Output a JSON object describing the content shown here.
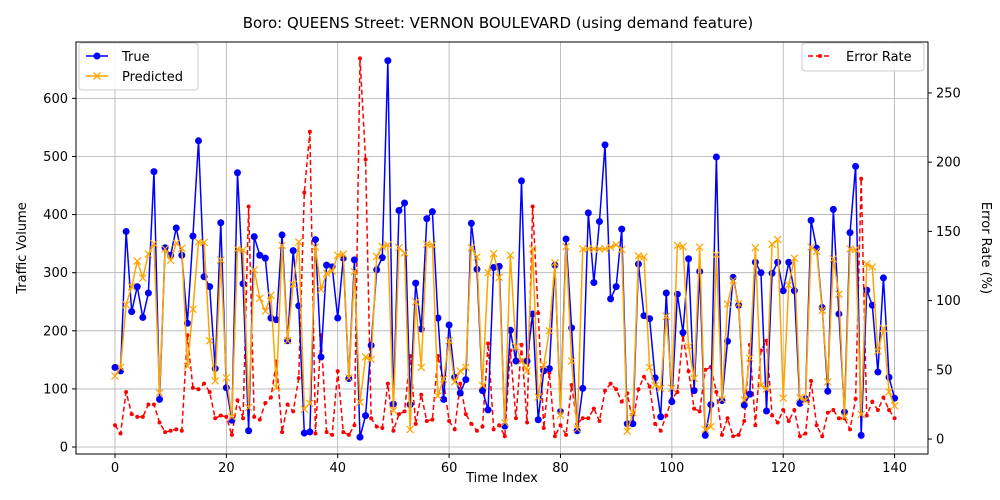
{
  "chart_data": {
    "type": "line",
    "title": "Boro: QUEENS Street: VERNON BOULEVARD (using demand feature)",
    "xlabel": "Time Index",
    "ylabel": "Traffic Volume",
    "ylabel_right": "Error Rate (%)",
    "xlim": [
      -7,
      146
    ],
    "ylim": [
      -12,
      697
    ],
    "ylim_right": [
      -10.8,
      286.8
    ],
    "xticks": [
      0,
      20,
      40,
      60,
      80,
      100,
      120,
      140
    ],
    "yticks": [
      0,
      100,
      200,
      300,
      400,
      500,
      600
    ],
    "yticks_right": [
      0,
      50,
      100,
      150,
      200,
      250
    ],
    "grid": true,
    "legend_left_placement": "upper-left",
    "legend_right_placement": "upper-right",
    "colors": {
      "true": "#0000ff",
      "predicted": "#ffa500",
      "error": "#ff0000"
    },
    "series": [
      {
        "name": "True",
        "axis": "left",
        "marker": "circle",
        "values": [
          137,
          131,
          371,
          233,
          276,
          223,
          265,
          474,
          82,
          343,
          330,
          377,
          330,
          213,
          363,
          527,
          293,
          276,
          135,
          386,
          102,
          46,
          472,
          281,
          28,
          362,
          330,
          325,
          222,
          219,
          365,
          183,
          338,
          243,
          24,
          26,
          357,
          155,
          313,
          310,
          222,
          325,
          118,
          322,
          17,
          54,
          175,
          305,
          326,
          665,
          74,
          407,
          420,
          73,
          282,
          203,
          393,
          405,
          222,
          82,
          210,
          120,
          93,
          116,
          385,
          306,
          97,
          64,
          309,
          311,
          36,
          201,
          148,
          458,
          148,
          229,
          47,
          131,
          135,
          313,
          61,
          358,
          205,
          28,
          101,
          403,
          283,
          388,
          520,
          255,
          276,
          375,
          40,
          40,
          315,
          226,
          221,
          119,
          52,
          265,
          78,
          263,
          197,
          324,
          97,
          302,
          20,
          73,
          499,
          80,
          182,
          292,
          244,
          72,
          91,
          318,
          300,
          62,
          299,
          318,
          269,
          318,
          269,
          75,
          83,
          390,
          342,
          240,
          96,
          409,
          229,
          60,
          369,
          483,
          20,
          270,
          244,
          129,
          291,
          120,
          84
        ]
      },
      {
        "name": "Predicted",
        "axis": "left",
        "marker": "x",
        "values": [
          122,
          137,
          245,
          276,
          320,
          291,
          332,
          350,
          93,
          341,
          321,
          351,
          342,
          139,
          237,
          353,
          352,
          183,
          114,
          322,
          119,
          52,
          341,
          339,
          68,
          305,
          256,
          234,
          261,
          102,
          347,
          183,
          280,
          353,
          65,
          75,
          344,
          271,
          299,
          303,
          330,
          332,
          119,
          302,
          77,
          155,
          151,
          328,
          345,
          348,
          63,
          343,
          334,
          30,
          250,
          137,
          349,
          348,
          88,
          117,
          183,
          112,
          131,
          137,
          343,
          327,
          106,
          300,
          333,
          292,
          42,
          330,
          173,
          148,
          131,
          341,
          86,
          141,
          200,
          317,
          55,
          345,
          148,
          31,
          341,
          341,
          341,
          341,
          341,
          344,
          348,
          340,
          27,
          59,
          329,
          327,
          137,
          106,
          101,
          225,
          101,
          347,
          345,
          173,
          118,
          344,
          30,
          35,
          331,
          82,
          246,
          287,
          247,
          81,
          153,
          343,
          106,
          100,
          349,
          357,
          84,
          279,
          325,
          85,
          80,
          344,
          337,
          235,
          112,
          324,
          263,
          52,
          341,
          340,
          56,
          315,
          310,
          165,
          204,
          95,
          71
        ]
      },
      {
        "name": "Error Rate",
        "axis": "right",
        "marker": "point",
        "values": [
          10,
          4,
          34,
          18,
          16,
          16,
          25,
          25,
          12,
          5,
          6,
          7,
          6,
          75,
          37,
          36,
          40,
          34,
          15,
          17,
          16,
          3,
          28,
          15,
          168,
          16,
          14,
          26,
          30,
          56,
          5,
          25,
          20,
          44,
          178,
          222,
          4,
          75,
          5,
          3,
          49,
          5,
          3,
          10,
          275,
          202,
          15,
          9,
          8,
          40,
          6,
          18,
          20,
          60,
          11,
          32,
          13,
          14,
          60,
          42,
          13,
          7,
          40,
          18,
          11,
          6,
          9,
          69,
          7,
          10,
          2,
          64,
          15,
          68,
          12,
          168,
          91,
          8,
          48,
          2,
          10,
          3,
          39,
          11,
          15,
          15,
          22,
          13,
          35,
          40,
          36,
          27,
          33,
          12,
          36,
          45,
          38,
          11,
          6,
          17,
          29,
          34,
          75,
          49,
          22,
          20,
          50,
          52,
          34,
          3,
          15,
          2,
          3,
          13,
          68,
          10,
          64,
          71,
          17,
          12,
          21,
          13,
          21,
          2,
          4,
          42,
          10,
          2,
          19,
          21,
          15,
          15,
          7,
          29,
          188,
          17,
          27,
          21,
          30,
          21,
          15
        ]
      }
    ]
  }
}
